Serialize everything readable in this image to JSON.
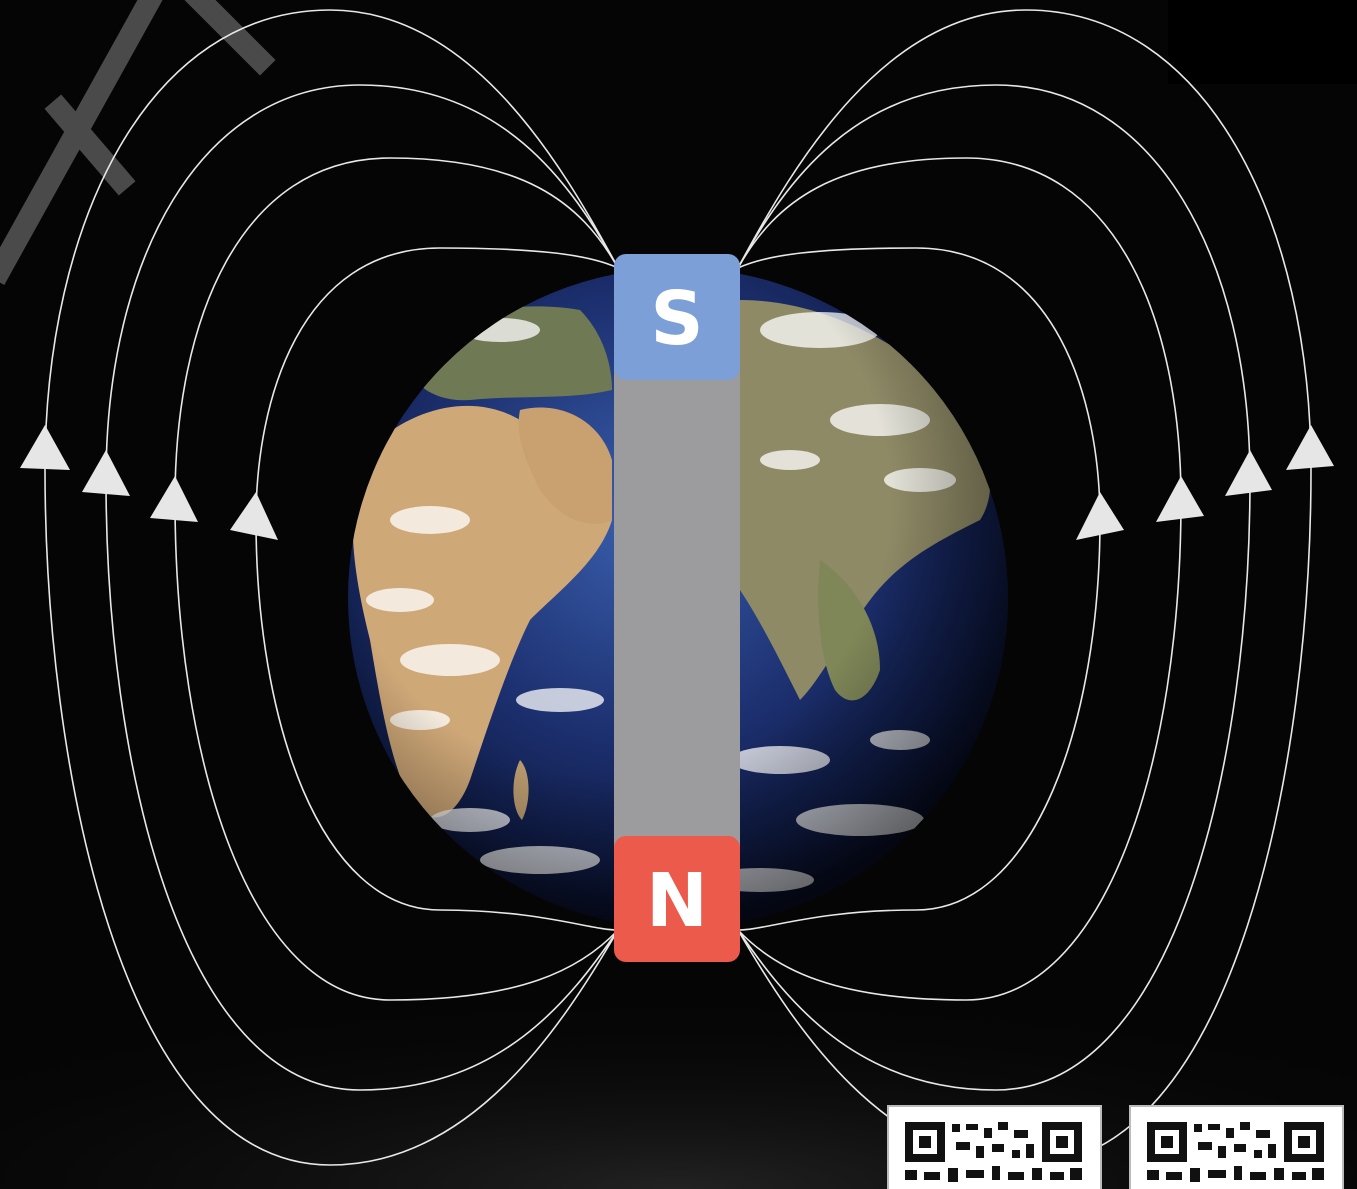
{
  "magnet": {
    "south_label": "S",
    "north_label": "N"
  },
  "colors": {
    "background": "#050505",
    "south_pole": "#7b9fd6",
    "north_pole": "#ec5a4b",
    "magnet_body": "#9c9b9d",
    "field_lines": "#e8e8e8",
    "ocean": "#1c2f6e",
    "land": "#d8b58a",
    "clouds": "#ffffff"
  },
  "icons": {
    "planet": "earth-icon",
    "code_left": "qr-code-icon",
    "code_right": "qr-code-icon"
  }
}
